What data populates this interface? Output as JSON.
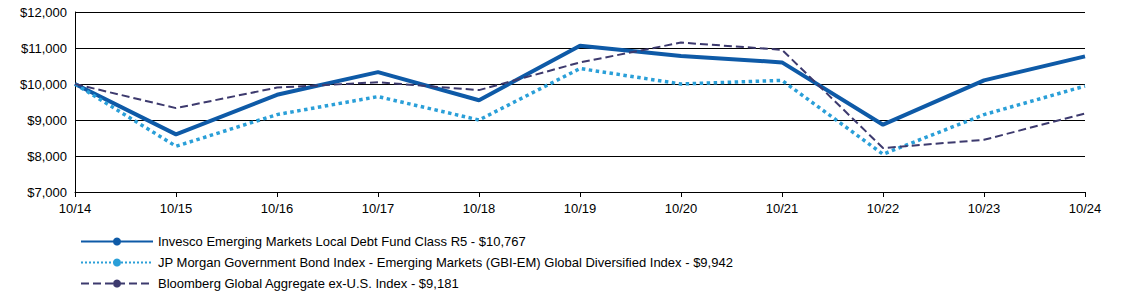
{
  "chart_data": {
    "type": "line",
    "categories": [
      "10/14",
      "10/15",
      "10/16",
      "10/17",
      "10/18",
      "10/19",
      "10/20",
      "10/21",
      "10/22",
      "10/23",
      "10/24"
    ],
    "series": [
      {
        "name": "Invesco Emerging Markets Local Debt Fund Class R5 - $10,767",
        "color": "#0e5aa7",
        "line_style": "solid",
        "values": [
          10000,
          8600,
          9700,
          10330,
          9550,
          11060,
          10780,
          10600,
          8870,
          10100,
          10767
        ]
      },
      {
        "name": "JP Morgan Government Bond Index - Emerging Markets (GBI-EM) Global Diversified Index - $9,942",
        "color": "#2a9fd8",
        "line_style": "dotted",
        "values": [
          10000,
          8270,
          9150,
          9650,
          9000,
          10430,
          10000,
          10100,
          8050,
          9150,
          9942
        ]
      },
      {
        "name": "Bloomberg Global Aggregate ex-U.S. Index - $9,181",
        "color": "#3d3a6e",
        "line_style": "dashed",
        "values": [
          10000,
          9330,
          9900,
          10050,
          9830,
          10600,
          11150,
          10950,
          8220,
          8450,
          9181
        ]
      }
    ],
    "ylim": [
      7000,
      12000
    ],
    "yticks": [
      {
        "value": 7000,
        "label": "$7,000"
      },
      {
        "value": 8000,
        "label": "$8,000"
      },
      {
        "value": 9000,
        "label": "$9,000"
      },
      {
        "value": 10000,
        "label": "$10,000"
      },
      {
        "value": 11000,
        "label": "$11,000"
      },
      {
        "value": 12000,
        "label": "$12,000"
      }
    ],
    "grid": true,
    "legend": "bottom-left"
  }
}
